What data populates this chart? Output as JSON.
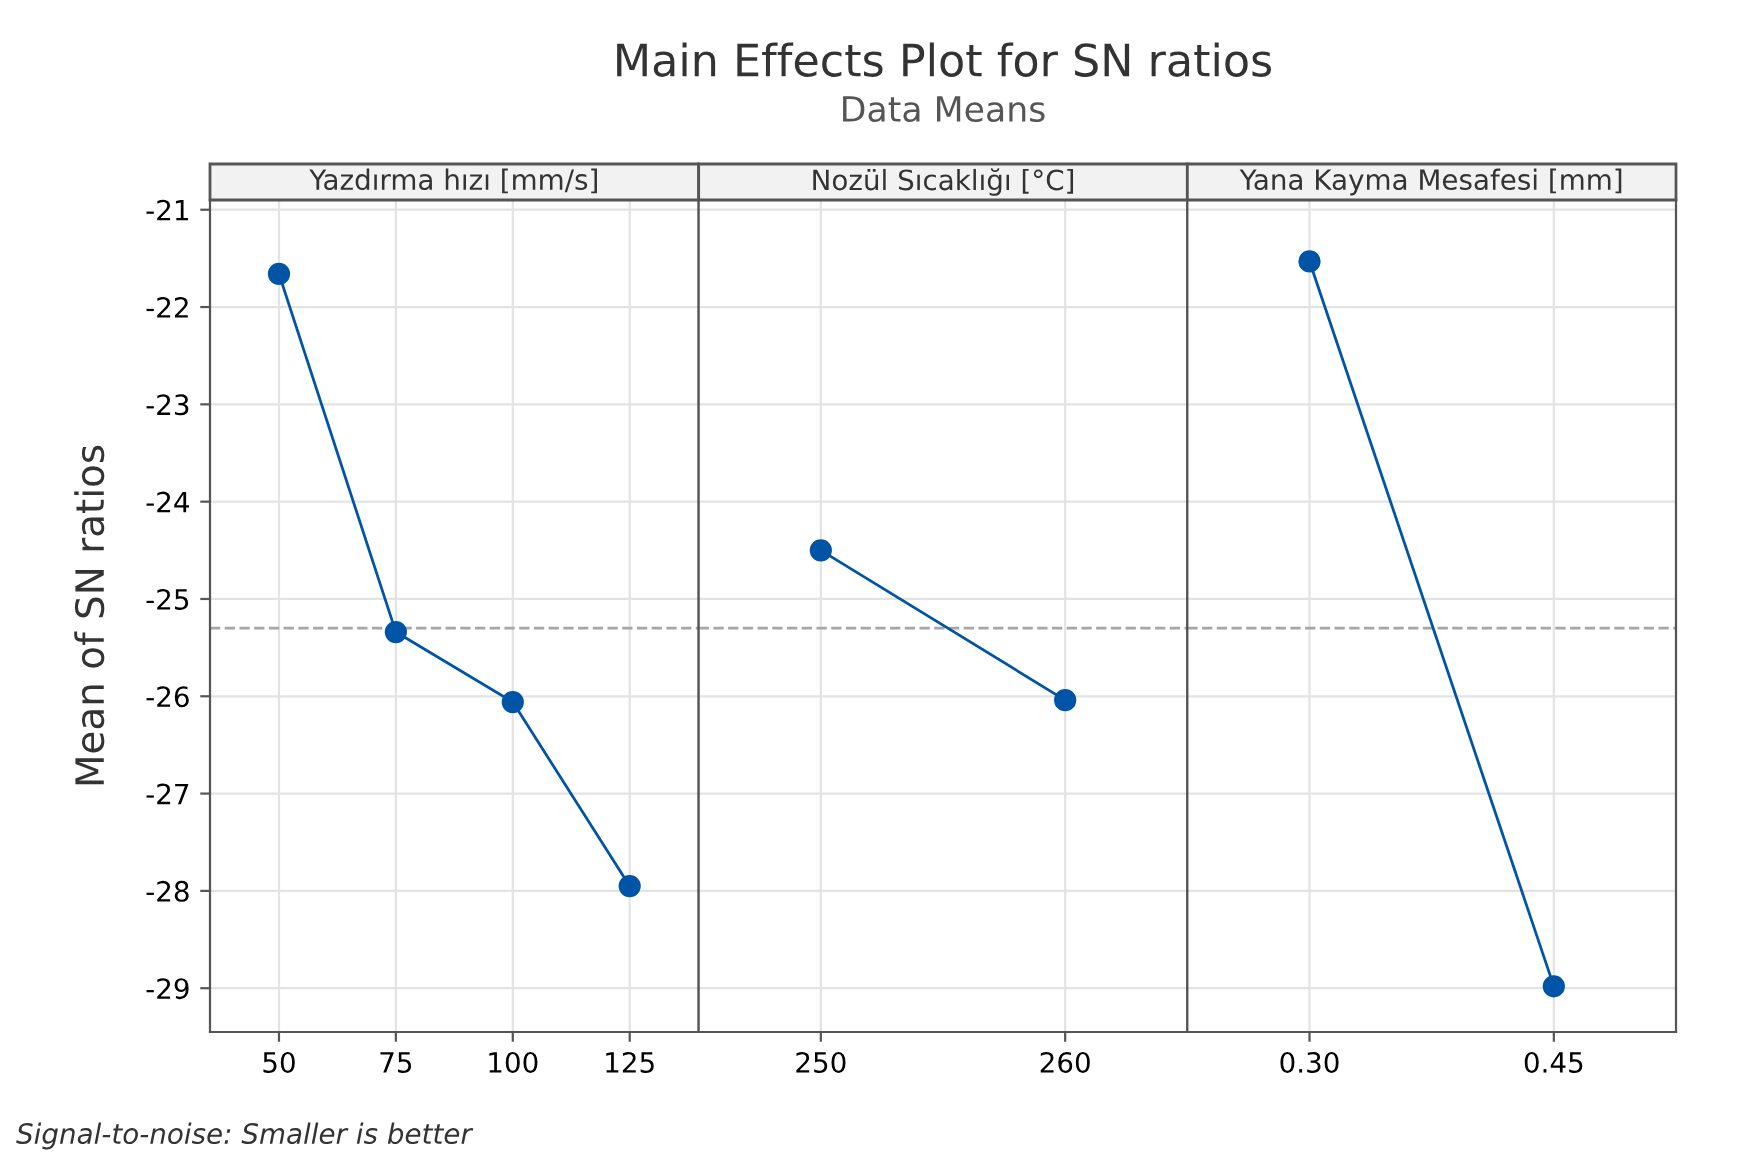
{
  "chart_data": [
    {
      "type": "line",
      "ylabel": "Mean of SN ratios",
      "xlabel": "Yazdırma hızı [mm/s]",
      "annotations": [
        "Signal-to-noise: Smaller is better"
      ],
      "categories": [
        "50",
        "75",
        "100",
        "125"
      ],
      "series": [
        {
          "color": "#0054a6",
          "values": [
            -21.66,
            -25.34,
            -26.06,
            -27.95
          ]
        }
      ],
      "ylim": [
        -29.45,
        -20.9
      ],
      "yticks": [
        -21,
        -22,
        -23,
        -24,
        -25,
        -26,
        -27,
        -28,
        -29
      ],
      "grid": true,
      "marker": "circle",
      "line_style": "solid",
      "ref_lines": [
        {
          "axis": "y",
          "value": -25.3,
          "color": "#a6a6a6",
          "line_style": "dashed"
        }
      ]
    },
    {
      "type": "line",
      "title": "Main Effects Plot for SN ratios",
      "subtitle": "Data Means",
      "xlabel": "Nozül Sıcaklığı [°C]",
      "categories": [
        "250",
        "260"
      ],
      "series": [
        {
          "color": "#0054a6",
          "values": [
            -24.5,
            -26.04
          ]
        }
      ],
      "ylim": [
        -29.45,
        -20.9
      ],
      "yticks": [
        -21,
        -22,
        -23,
        -24,
        -25,
        -26,
        -27,
        -28,
        -29
      ],
      "tick_labels": "x",
      "grid": true,
      "marker": "circle",
      "line_style": "solid",
      "ref_lines": [
        {
          "axis": "y",
          "value": -25.3,
          "color": "#a6a6a6",
          "line_style": "dashed"
        }
      ]
    },
    {
      "type": "line",
      "xlabel": "Yana Kayma Mesafesi [mm]",
      "categories": [
        "0.30",
        "0.45"
      ],
      "series": [
        {
          "color": "#0054a6",
          "values": [
            -21.53,
            -28.98
          ]
        }
      ],
      "ylim": [
        -29.45,
        -20.9
      ],
      "yticks": [
        -21,
        -22,
        -23,
        -24,
        -25,
        -26,
        -27,
        -28,
        -29
      ],
      "tick_labels": "x",
      "grid": true,
      "marker": "circle",
      "line_style": "solid",
      "ref_lines": [
        {
          "axis": "y",
          "value": -25.3,
          "color": "#a6a6a6",
          "line_style": "dashed"
        }
      ]
    }
  ]
}
